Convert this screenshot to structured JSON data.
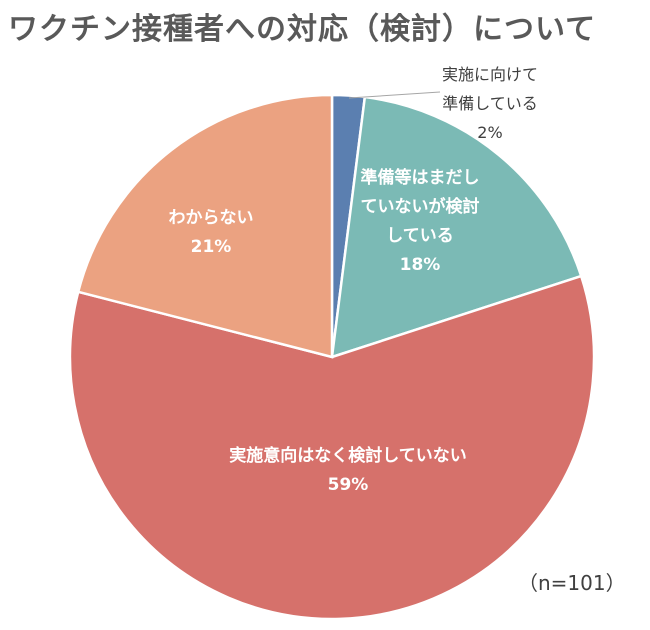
{
  "chart_data": {
    "type": "pie",
    "title": "ワクチン接種者への対応（検討）について",
    "categories": [
      "実施に向けて準備している",
      "準備等はまだしていないが検討している",
      "実施意向はなく検討していない",
      "わからない"
    ],
    "values": [
      2,
      18,
      59,
      21
    ],
    "value_labels": [
      "2%",
      "18%",
      "59%",
      "21%"
    ],
    "label_lines": [
      [
        "実施に向けて",
        "準備している"
      ],
      [
        "準備等はまだし",
        "ていないが検討",
        "している"
      ],
      [
        "実施意向はなく検討していない"
      ],
      [
        "わからない"
      ]
    ],
    "colors": [
      "#5b7fb0",
      "#7bbab5",
      "#d6716b",
      "#eba281"
    ],
    "note": "（n=101）",
    "legend": "none"
  }
}
